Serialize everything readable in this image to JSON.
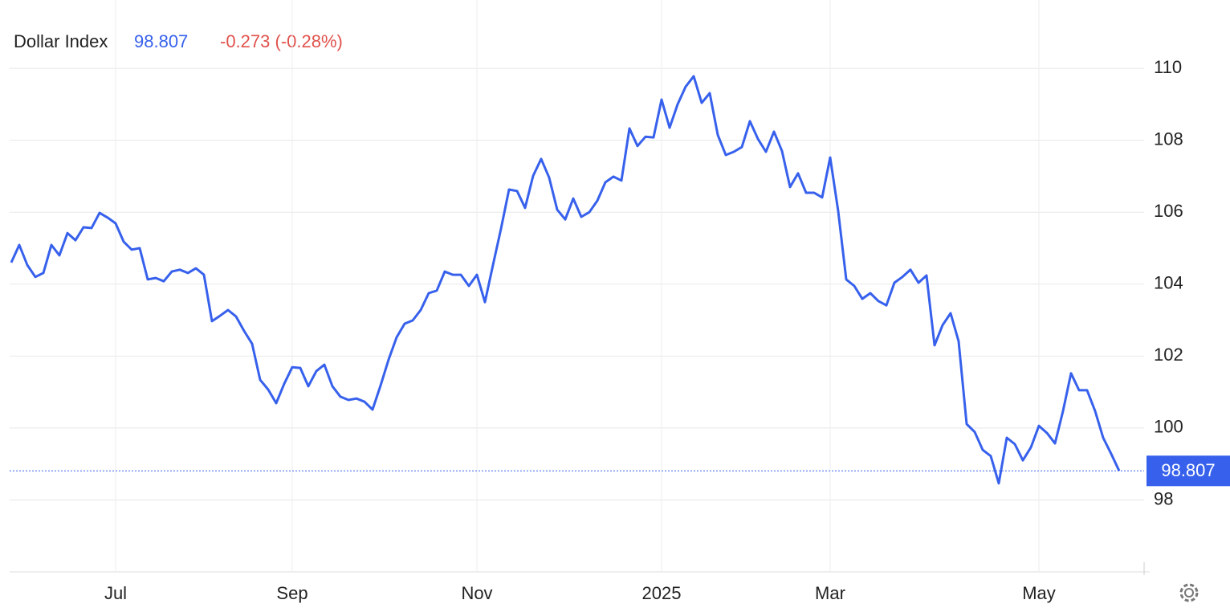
{
  "header": {
    "name": "Dollar Index",
    "price": "98.807",
    "change": "-0.273 (-0.28%)"
  },
  "chart_data": {
    "type": "line",
    "categories": [
      null,
      null,
      null,
      null,
      null,
      null,
      null,
      null,
      null,
      null,
      null,
      null,
      null,
      "Jul",
      null,
      null,
      null,
      null,
      null,
      null,
      null,
      null,
      null,
      null,
      null,
      null,
      null,
      null,
      null,
      null,
      null,
      null,
      null,
      null,
      null,
      "Sep",
      null,
      null,
      null,
      null,
      null,
      null,
      null,
      null,
      null,
      null,
      null,
      null,
      null,
      null,
      null,
      null,
      null,
      null,
      null,
      null,
      null,
      null,
      "Nov",
      null,
      null,
      null,
      null,
      null,
      null,
      null,
      null,
      null,
      null,
      null,
      null,
      null,
      null,
      null,
      null,
      null,
      null,
      null,
      null,
      null,
      null,
      "2025",
      null,
      null,
      null,
      null,
      null,
      null,
      null,
      null,
      null,
      null,
      null,
      null,
      null,
      null,
      null,
      null,
      null,
      null,
      null,
      null,
      "Mar",
      null,
      null,
      null,
      null,
      null,
      null,
      null,
      null,
      null,
      null,
      null,
      null,
      null,
      null,
      null,
      null,
      null,
      null,
      null,
      null,
      null,
      null,
      null,
      null,
      null,
      "May",
      null,
      null,
      null,
      null,
      null,
      null,
      null,
      null,
      null,
      null
    ],
    "values": [
      104.6,
      105.09,
      104.53,
      104.2,
      104.31,
      105.09,
      104.8,
      105.42,
      105.22,
      105.58,
      105.56,
      105.98,
      105.85,
      105.69,
      105.18,
      104.96,
      105.0,
      104.13,
      104.17,
      104.08,
      104.35,
      104.4,
      104.31,
      104.44,
      104.26,
      102.97,
      103.12,
      103.28,
      103.1,
      102.7,
      102.34,
      101.34,
      101.07,
      100.69,
      101.23,
      101.69,
      101.67,
      101.16,
      101.58,
      101.76,
      101.16,
      100.87,
      100.78,
      100.82,
      100.73,
      100.51,
      101.18,
      101.9,
      102.52,
      102.9,
      102.99,
      103.28,
      103.75,
      103.82,
      104.35,
      104.26,
      104.26,
      103.95,
      104.26,
      103.5,
      104.53,
      105.54,
      106.63,
      106.59,
      106.12,
      107.01,
      107.48,
      106.96,
      106.07,
      105.8,
      106.38,
      105.87,
      106.0,
      106.32,
      106.83,
      106.99,
      106.88,
      108.33,
      107.84,
      108.1,
      108.08,
      109.13,
      108.35,
      109.0,
      109.49,
      109.78,
      109.04,
      109.31,
      108.15,
      107.59,
      107.68,
      107.81,
      108.53,
      108.04,
      107.68,
      108.24,
      107.7,
      106.7,
      107.08,
      106.54,
      106.54,
      106.41,
      107.52,
      106.03,
      104.13,
      103.95,
      103.59,
      103.75,
      103.53,
      103.41,
      104.04,
      104.2,
      104.4,
      104.04,
      104.24,
      102.3,
      102.86,
      103.19,
      102.41,
      100.11,
      99.89,
      99.39,
      99.22,
      98.46,
      99.73,
      99.55,
      99.1,
      99.46,
      100.06,
      99.86,
      99.57,
      100.47,
      101.52,
      101.05,
      101.05,
      100.47,
      99.73,
      99.28,
      98.807
    ],
    "color": "#3761ec",
    "ylim": [
      96,
      111.9
    ],
    "yticks": [
      98,
      100,
      102,
      104,
      106,
      108,
      110
    ],
    "grid": true
  }
}
